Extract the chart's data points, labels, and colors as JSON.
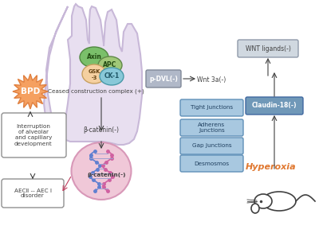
{
  "bg_color": "#f5f0f8",
  "hand_color": "#e8dff0",
  "hand_border": "#c8b8d8",
  "cell_color": "#f0c8d8",
  "cell_border": "#d898b8",
  "axin_color": "#7abf6a",
  "apc_color": "#a0c878",
  "gsk3_color": "#f5d0a0",
  "ck1_color": "#88c8d8",
  "bpd_color": "#f5a060",
  "bpd_border": "#e08040",
  "box_gray_color": "#b0b8c8",
  "box_blue_color": "#7098b8",
  "box_blue_light": "#a8c8e0",
  "wnt_ligands_text": "WNT ligands(-)",
  "pdvl_text": "p-DVL(-)",
  "wnt3a_text": "Wnt 3a(-)",
  "ceased_text": "Ceased construction complex (+)",
  "bcatenin_label1": "β-catenin(-)",
  "bcatenin_label2": "β-catenin(-)",
  "tight_junctions": "Tight Junctions",
  "adherens_junctions": "Adherens\nJunctions",
  "gap_junctions": "Gap Junctions",
  "desmosmos": "Desmosmos",
  "claudin18": "Claudin-18(-)",
  "hyperoxia_text": "Hyperoxia",
  "hyperoxia_color": "#e07830",
  "bpd_label": "BPD",
  "interruption_text": "Interruption\nof alveolar\nand capillary\ndevelopment",
  "aec_text": "AECⅡ -- AEC Ⅰ\ndisorder",
  "dna_color1": "#6080d0",
  "dna_color2": "#d060a0",
  "white": "#ffffff",
  "black": "#000000",
  "dark_gray": "#404040",
  "arrow_color": "#404040"
}
